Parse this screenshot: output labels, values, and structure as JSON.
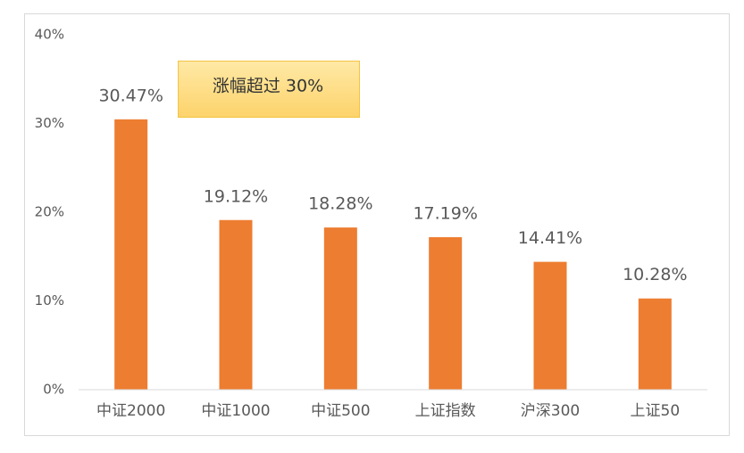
{
  "chart_data": {
    "type": "bar",
    "annotation": "涨幅超过 30%",
    "categories": [
      "中证2000",
      "中证1000",
      "中证500",
      "上证指数",
      "沪深300",
      "上证50"
    ],
    "values": [
      30.47,
      19.12,
      18.28,
      17.19,
      14.41,
      10.28
    ],
    "value_labels": [
      "30.47%",
      "19.12%",
      "18.28%",
      "17.19%",
      "14.41%",
      "10.28%"
    ],
    "color": "#ed7d31",
    "ylim": [
      0,
      40
    ],
    "yticks": [
      {
        "value": 0,
        "label": "0%"
      },
      {
        "value": 10,
        "label": "10%"
      },
      {
        "value": 20,
        "label": "20%"
      },
      {
        "value": 30,
        "label": "30%"
      },
      {
        "value": 40,
        "label": "40%"
      }
    ],
    "grid": false
  }
}
